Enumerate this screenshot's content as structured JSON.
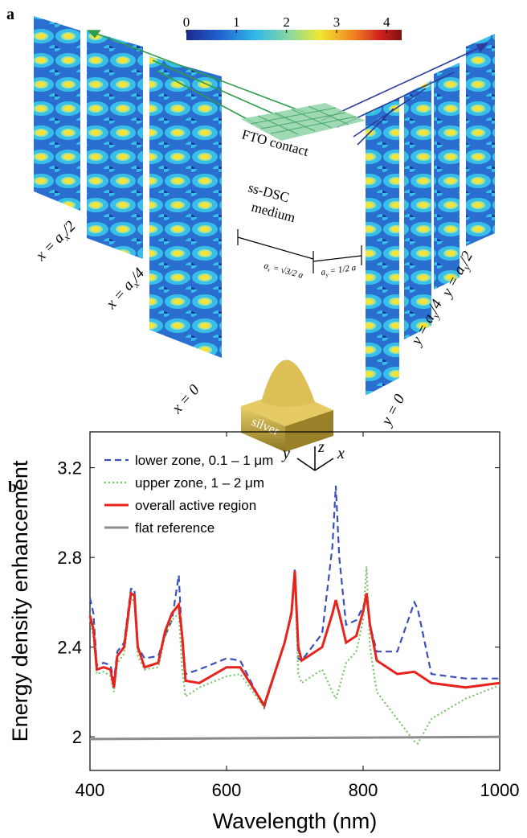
{
  "panel_labels": [
    "a",
    "b"
  ],
  "colorbar": {
    "lim": [
      0,
      4.3
    ],
    "ticks": [
      0,
      1,
      2,
      3,
      4
    ]
  },
  "fto_label": "FTO contact",
  "medium_label": [
    "ss-DSC",
    "medium"
  ],
  "slice_labels": [
    {
      "lhs": "x = a",
      "sub": "x",
      "rhs": "/2"
    },
    {
      "lhs": "x = a",
      "sub": "x",
      "rhs": "/4"
    },
    {
      "lhs": "x = 0",
      "sub": "",
      "rhs": ""
    },
    {
      "lhs": "y = 0",
      "sub": "",
      "rhs": ""
    },
    {
      "lhs": "y = a",
      "sub": "y",
      "rhs": "/4"
    },
    {
      "lhs": "y = a",
      "sub": "y",
      "rhs": "/2"
    }
  ],
  "period_labels": [
    {
      "lhs": "a",
      "sub": "x",
      "rhs": " = √3/2 a"
    },
    {
      "lhs": "a",
      "sub": "y",
      "rhs": " = 1/2 a"
    }
  ],
  "material_label": "silver",
  "axis_labels": [
    "z",
    "y",
    "x"
  ],
  "chart_data": {
    "type": "line",
    "xlabel": "Wavelength (nm)",
    "ylabel": "Energy density enhancement",
    "xlim": [
      400,
      1000
    ],
    "xticks": [
      400,
      600,
      800,
      1000
    ],
    "ylim": [
      1.85,
      3.36
    ],
    "yticks": [
      2,
      2.4,
      2.8,
      3.2
    ],
    "legend": "upper left",
    "x": [
      400,
      405,
      410,
      420,
      430,
      435,
      440,
      450,
      460,
      465,
      470,
      480,
      500,
      510,
      520,
      530,
      535,
      540,
      560,
      600,
      620,
      655,
      685,
      695,
      700,
      705,
      710,
      740,
      755,
      760,
      765,
      775,
      790,
      800,
      805,
      810,
      820,
      850,
      875,
      880,
      900,
      950,
      1000
    ],
    "series": [
      {
        "name": "lower zone, 0.1 – 1 μm",
        "color": "#3a4fb8",
        "dash": "dashed",
        "values": [
          2.62,
          2.55,
          2.32,
          2.33,
          2.32,
          2.25,
          2.38,
          2.42,
          2.66,
          2.66,
          2.4,
          2.35,
          2.36,
          2.45,
          2.52,
          2.72,
          2.42,
          2.28,
          2.3,
          2.35,
          2.34,
          2.13,
          2.42,
          2.56,
          2.75,
          2.35,
          2.34,
          2.46,
          2.85,
          3.12,
          2.8,
          2.5,
          2.52,
          2.58,
          2.62,
          2.5,
          2.38,
          2.38,
          2.6,
          2.57,
          2.28,
          2.26,
          2.26
        ]
      },
      {
        "name": "upper zone, 1 – 2 μm",
        "color": "#7ac36a",
        "dash": "dotted",
        "values": [
          2.52,
          2.45,
          2.28,
          2.29,
          2.27,
          2.2,
          2.33,
          2.37,
          2.62,
          2.6,
          2.36,
          2.3,
          2.31,
          2.45,
          2.52,
          2.55,
          2.3,
          2.18,
          2.22,
          2.27,
          2.28,
          2.13,
          2.42,
          2.54,
          2.72,
          2.28,
          2.24,
          2.3,
          2.2,
          2.17,
          2.22,
          2.33,
          2.38,
          2.52,
          2.76,
          2.4,
          2.2,
          2.08,
          1.98,
          1.97,
          2.08,
          2.17,
          2.23
        ]
      },
      {
        "name": "overall active region",
        "color": "#e8231c",
        "dash": "solid",
        "values": [
          2.54,
          2.48,
          2.3,
          2.31,
          2.3,
          2.22,
          2.36,
          2.4,
          2.64,
          2.63,
          2.4,
          2.31,
          2.33,
          2.47,
          2.55,
          2.59,
          2.45,
          2.25,
          2.24,
          2.31,
          2.31,
          2.14,
          2.42,
          2.55,
          2.74,
          2.4,
          2.34,
          2.4,
          2.55,
          2.61,
          2.55,
          2.42,
          2.45,
          2.56,
          2.64,
          2.5,
          2.34,
          2.28,
          2.29,
          2.28,
          2.24,
          2.22,
          2.24
        ]
      },
      {
        "name": "flat reference",
        "color": "#8c8c8c",
        "dash": "solid",
        "x": [
          400,
          1000
        ],
        "values": [
          1.99,
          2.0
        ]
      }
    ]
  }
}
